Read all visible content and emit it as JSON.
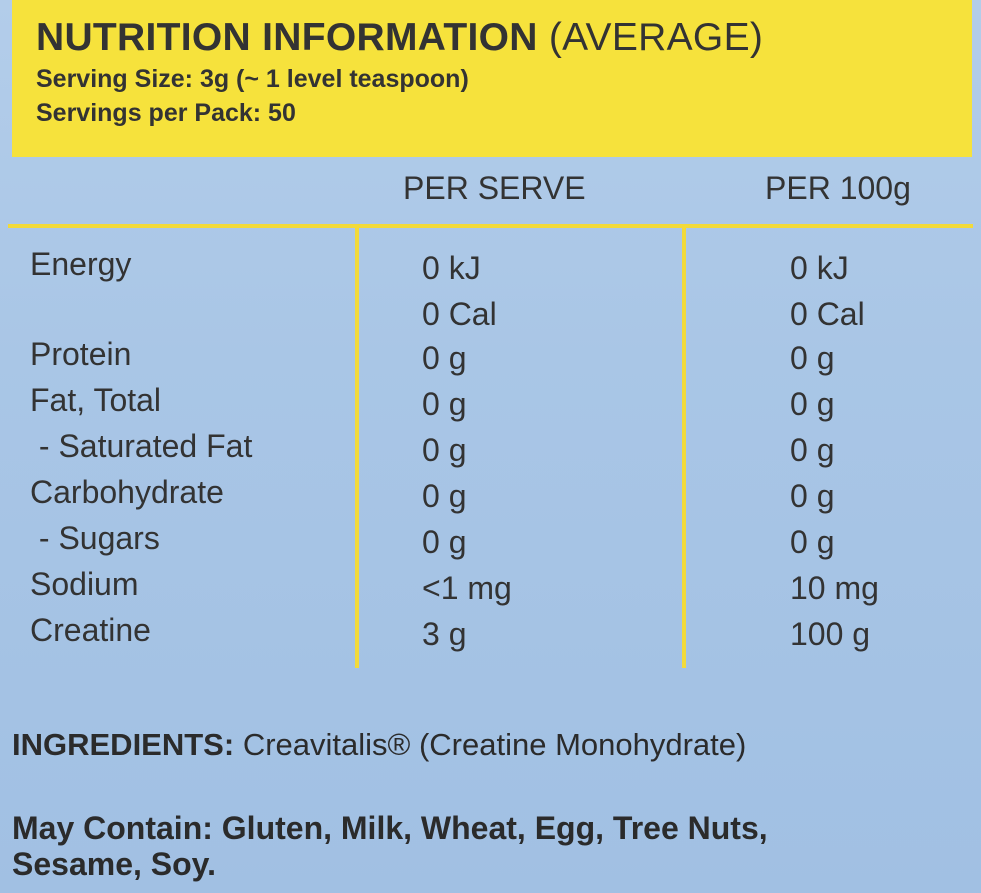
{
  "header": {
    "title_bold": "NUTRITION INFORMATION",
    "title_rest": "(AVERAGE)",
    "serving_size": "Serving Size: 3g (~ 1 level teaspoon)",
    "servings_per_pack": "Servings per Pack: 50"
  },
  "columns": {
    "per_serve": "PER SERVE",
    "per_100g": "PER 100g"
  },
  "rows": [
    {
      "nutrient": "Energy",
      "per_serve": "0 kJ",
      "per_100g": "0 kJ"
    },
    {
      "nutrient": "",
      "per_serve": "0 Cal",
      "per_100g": "0 Cal"
    },
    {
      "nutrient": "Protein",
      "per_serve": "0 g",
      "per_100g": "0 g"
    },
    {
      "nutrient": "Fat, Total",
      "per_serve": "0 g",
      "per_100g": "0 g"
    },
    {
      "nutrient": " - Saturated Fat",
      "per_serve": "0 g",
      "per_100g": "0 g"
    },
    {
      "nutrient": "Carbohydrate",
      "per_serve": "0 g",
      "per_100g": "0 g"
    },
    {
      "nutrient": " - Sugars",
      "per_serve": "0 g",
      "per_100g": "0 g"
    },
    {
      "nutrient": "Sodium",
      "per_serve": "<1 mg",
      "per_100g": "10 mg"
    },
    {
      "nutrient": "Creatine",
      "per_serve": "3 g",
      "per_100g": "100 g"
    }
  ],
  "ingredients": {
    "label": "INGREDIENTS:",
    "text": "Creavitalis® (Creatine Monohydrate)"
  },
  "may_contain": {
    "line1": "May Contain: Gluten, Milk, Wheat, Egg, Tree Nuts,",
    "line2": "Sesame, Soy."
  },
  "colors": {
    "header_yellow": "#f6e23c",
    "rule_yellow": "#f2da3a",
    "background_blue": "#a9c6e6"
  }
}
